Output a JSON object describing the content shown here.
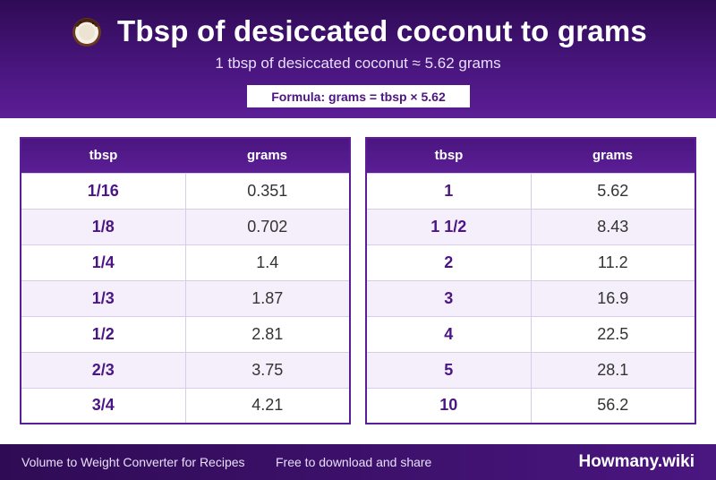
{
  "header": {
    "icon": "coconut-icon",
    "title": "Tbsp of desiccated coconut to grams",
    "subtitle": "1 tbsp of desiccated coconut ≈ 5.62 grams",
    "formula": "Formula: grams = tbsp × 5.62"
  },
  "tables": {
    "left": {
      "col_tbsp": "tbsp",
      "col_grams": "grams",
      "rows": [
        {
          "tbsp": "1/16",
          "grams": "0.351"
        },
        {
          "tbsp": "1/8",
          "grams": "0.702"
        },
        {
          "tbsp": "1/4",
          "grams": "1.4"
        },
        {
          "tbsp": "1/3",
          "grams": "1.87"
        },
        {
          "tbsp": "1/2",
          "grams": "2.81"
        },
        {
          "tbsp": "2/3",
          "grams": "3.75"
        },
        {
          "tbsp": "3/4",
          "grams": "4.21"
        }
      ]
    },
    "right": {
      "col_tbsp": "tbsp",
      "col_grams": "grams",
      "rows": [
        {
          "tbsp": "1",
          "grams": "5.62"
        },
        {
          "tbsp": "1 1/2",
          "grams": "8.43"
        },
        {
          "tbsp": "2",
          "grams": "11.2"
        },
        {
          "tbsp": "3",
          "grams": "16.9"
        },
        {
          "tbsp": "4",
          "grams": "22.5"
        },
        {
          "tbsp": "5",
          "grams": "28.1"
        },
        {
          "tbsp": "10",
          "grams": "56.2"
        }
      ]
    }
  },
  "footer": {
    "left_text": "Volume to Weight Converter for Recipes",
    "middle_text": "Free to download and share",
    "brand": "Howmany.wiki"
  },
  "colors": {
    "accent": "#4b1684",
    "header_dark": "#2f0b55",
    "row_alt": "#f4effa"
  }
}
